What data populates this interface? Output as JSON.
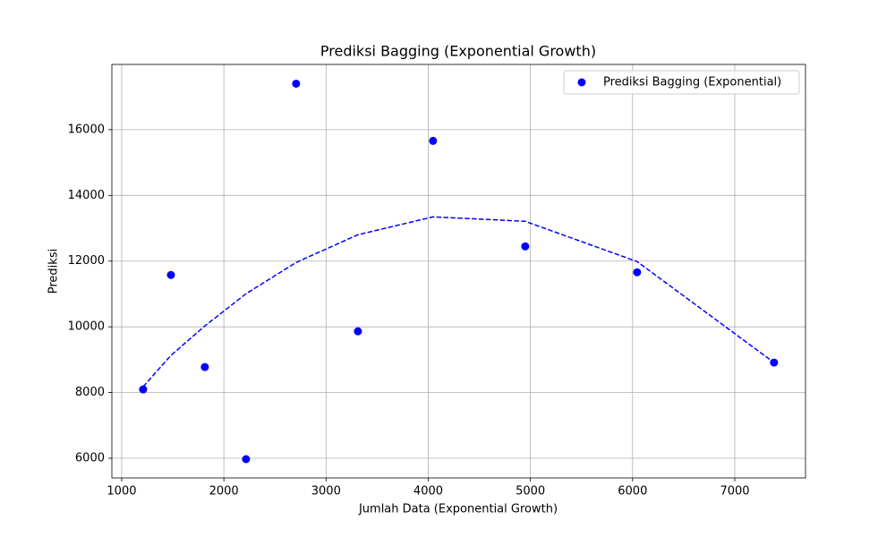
{
  "chart_data": {
    "type": "scatter",
    "title": "Prediksi Bagging (Exponential Growth)",
    "x_label": "Jumlah Data (Exponential Growth)",
    "y_label": "Prediksi",
    "x": [
      1210,
      1482,
      1814,
      2217,
      2707,
      3312,
      4047,
      4949,
      6044,
      7384
    ],
    "series": [
      {
        "name": "Prediksi Bagging (Exponential)",
        "type": "scatter",
        "color": "#0000ff",
        "values": [
          8095,
          11578,
          8776,
          5973,
          17401,
          9864,
          15660,
          12449,
          11660,
          8912
        ]
      },
      {
        "type": "line",
        "color": "#0000ff",
        "style": "dashed",
        "values": [
          8177,
          9130,
          10027,
          11007,
          11959,
          12803,
          13347,
          13211,
          11986,
          8912
        ]
      }
    ],
    "xlim": [
      904,
      7692
    ],
    "ylim": [
      5401,
      17986
    ],
    "xticks": [
      1000,
      2000,
      3000,
      4000,
      5000,
      6000,
      7000
    ],
    "yticks": [
      6000,
      8000,
      10000,
      12000,
      14000,
      16000
    ],
    "grid": true,
    "legend": "upper right"
  }
}
